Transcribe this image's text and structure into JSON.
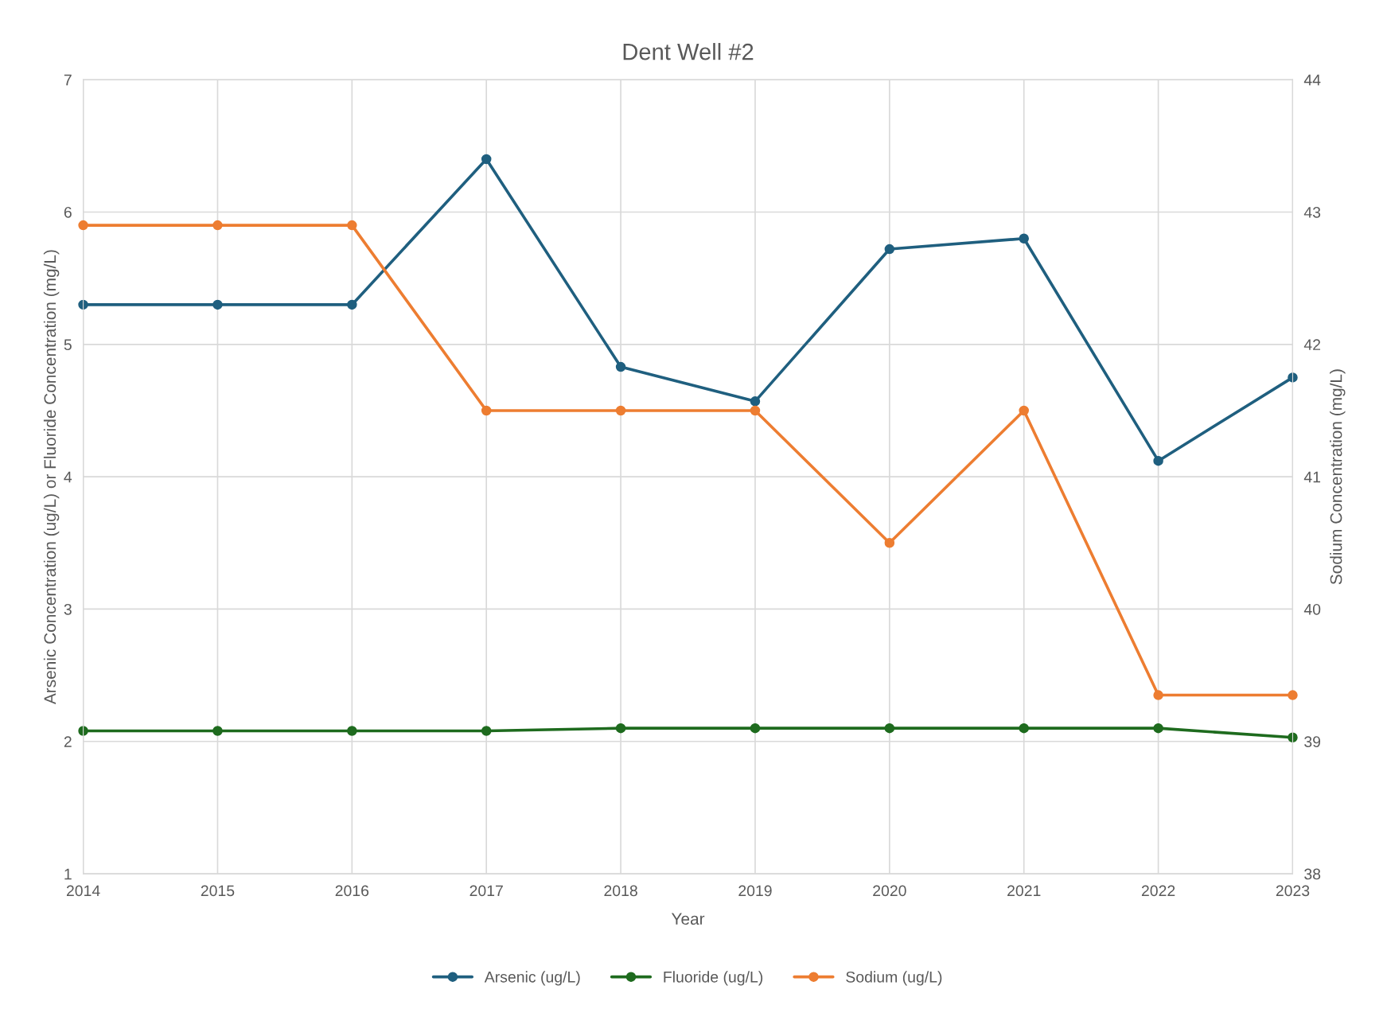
{
  "chart_data": {
    "type": "line",
    "title": "Dent Well #2",
    "xlabel": "Year",
    "ylabel": "Arsenic Concentration (ug/L) or Fluoride Concentration (mg/L)",
    "y2label": "Sodium Concentration (mg/L)",
    "x": [
      2014,
      2015,
      2016,
      2017,
      2018,
      2019,
      2020,
      2021,
      2022,
      2023
    ],
    "series": [
      {
        "name": "Arsenic (ug/L)",
        "color": "#1f5f7f",
        "values": [
          5.3,
          5.3,
          5.3,
          6.4,
          4.83,
          4.57,
          5.72,
          5.8,
          4.12,
          4.75
        ]
      },
      {
        "name": "Fluoride (ug/L)",
        "color": "#1e6b1e",
        "values": [
          2.08,
          2.08,
          2.08,
          2.08,
          2.1,
          2.1,
          2.1,
          2.1,
          2.1,
          2.03
        ]
      },
      {
        "name": "Sodium (ug/L)",
        "color": "#ed7d31",
        "axis": "y2",
        "values": [
          42.9,
          42.9,
          42.9,
          41.5,
          41.5,
          41.5,
          40.5,
          41.5,
          39.35,
          39.35
        ]
      }
    ],
    "xlim": [
      2014,
      2023
    ],
    "xticks": [
      2014,
      2015,
      2016,
      2017,
      2018,
      2019,
      2020,
      2021,
      2022,
      2023
    ],
    "ylim": [
      1,
      7
    ],
    "yticks": [
      1,
      2,
      3,
      4,
      5,
      6,
      7
    ],
    "y2lim": [
      38,
      44
    ],
    "y2ticks": [
      38,
      39,
      40,
      41,
      42,
      43,
      44
    ],
    "grid": true,
    "legend": "bottom",
    "marker": "circle",
    "line_style": "solid"
  }
}
